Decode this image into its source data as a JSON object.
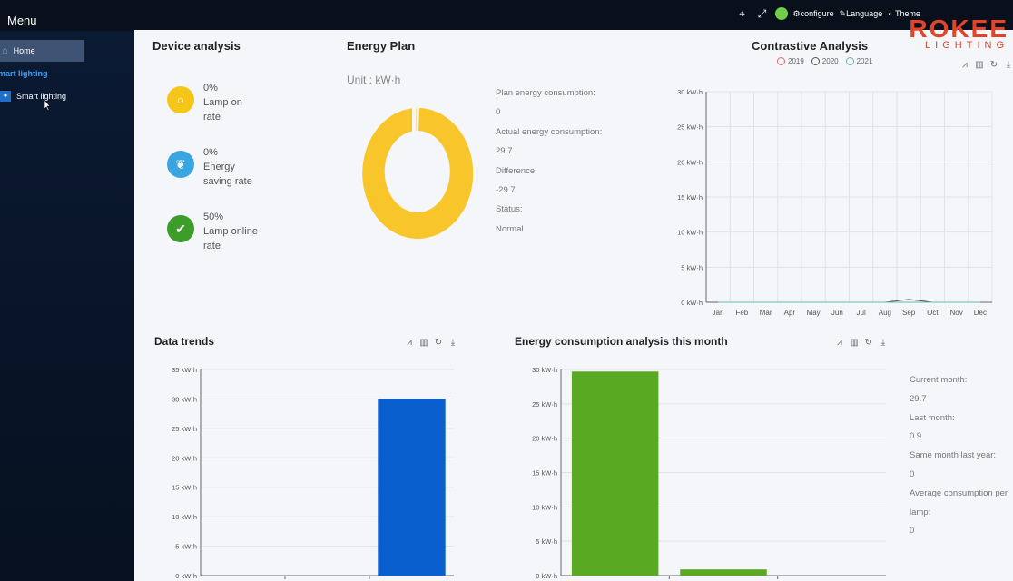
{
  "sidebar": {
    "menu_title": "Menu",
    "home_label": "Home",
    "section_label": "mart lighting",
    "smart_label": "Smart lighting"
  },
  "topbar": {
    "configure_label": "configure",
    "language_label": "Language",
    "theme_label": "Theme"
  },
  "logo": {
    "brand": "ROKEE",
    "tagline": "LIGHTING"
  },
  "device_analysis": {
    "title": "Device analysis",
    "stats": [
      {
        "value": "0%",
        "label": "Lamp on rate",
        "color": "#f5c518",
        "icon": "bulb-icon"
      },
      {
        "value": "0%",
        "label": "Energy saving rate",
        "color": "#3aa5e0",
        "icon": "leaf-icon"
      },
      {
        "value": "50%",
        "label": "Lamp online rate",
        "color": "#3c9d2a",
        "icon": "check-icon"
      }
    ]
  },
  "energy_plan": {
    "title": "Energy Plan",
    "unit": "Unit : kW·h",
    "items": [
      {
        "label": "Plan energy consumption:",
        "value": "0"
      },
      {
        "label": "Actual energy consumption:",
        "value": "29.7"
      },
      {
        "label": "Difference:",
        "value": "-29.7"
      },
      {
        "label": "Status:",
        "value": "Normal"
      }
    ],
    "donut_color": "#f8c62a"
  },
  "contrastive": {
    "title": "Contrastive Analysis",
    "legend": [
      {
        "name": "2019",
        "color": "#e46b6b"
      },
      {
        "name": "2020",
        "color": "#555555"
      },
      {
        "name": "2021",
        "color": "#6fb8a8"
      }
    ]
  },
  "data_trends": {
    "title": "Data trends"
  },
  "month_analysis": {
    "title": "Energy consumption analysis this month",
    "items": [
      {
        "label": "Current month:",
        "value": "29.7"
      },
      {
        "label": "Last month:",
        "value": "0.9"
      },
      {
        "label": "Same month last year:",
        "value": "0"
      },
      {
        "label": "Average consumption per",
        "value": "lamp:"
      },
      {
        "label": "",
        "value": "0"
      }
    ]
  },
  "chart_data": [
    {
      "type": "line",
      "title": "Contrastive Analysis",
      "categories": [
        "Jan",
        "Feb",
        "Mar",
        "Apr",
        "May",
        "Jun",
        "Jul",
        "Aug",
        "Sep",
        "Oct",
        "Nov",
        "Dec"
      ],
      "series": [
        {
          "name": "2019",
          "values": [
            0,
            0,
            0,
            0,
            0,
            0,
            0,
            0,
            0,
            0,
            0,
            0
          ]
        },
        {
          "name": "2020",
          "values": [
            0,
            0,
            0,
            0,
            0,
            0,
            0,
            0,
            0.4,
            0,
            0,
            0
          ]
        },
        {
          "name": "2021",
          "values": [
            0,
            0,
            0,
            0,
            0,
            0,
            0,
            0,
            0,
            0,
            0,
            0
          ]
        }
      ],
      "yticks": [
        "0 kW·h",
        "5 kW·h",
        "10 kW·h",
        "15 kW·h",
        "20 kW·h",
        "25 kW·h",
        "30 kW·h"
      ],
      "ylim": [
        0,
        30
      ]
    },
    {
      "type": "bar",
      "title": "Data trends",
      "values": [
        0,
        0,
        30
      ],
      "yticks": [
        "0 kW·h",
        "5 kW·h",
        "10 kW·h",
        "15 kW·h",
        "20 kW·h",
        "25 kW·h",
        "30 kW·h",
        "35 kW·h"
      ],
      "ylim": [
        0,
        35
      ],
      "color": "#0a5fcf"
    },
    {
      "type": "bar",
      "title": "Energy consumption analysis this month",
      "values": [
        29.7,
        0.9
      ],
      "yticks": [
        "0 kW·h",
        "5 kW·h",
        "10 kW·h",
        "15 kW·h",
        "20 kW·h",
        "25 kW·h",
        "30 kW·h"
      ],
      "ylim": [
        0,
        30
      ],
      "color": "#5aa923"
    }
  ]
}
